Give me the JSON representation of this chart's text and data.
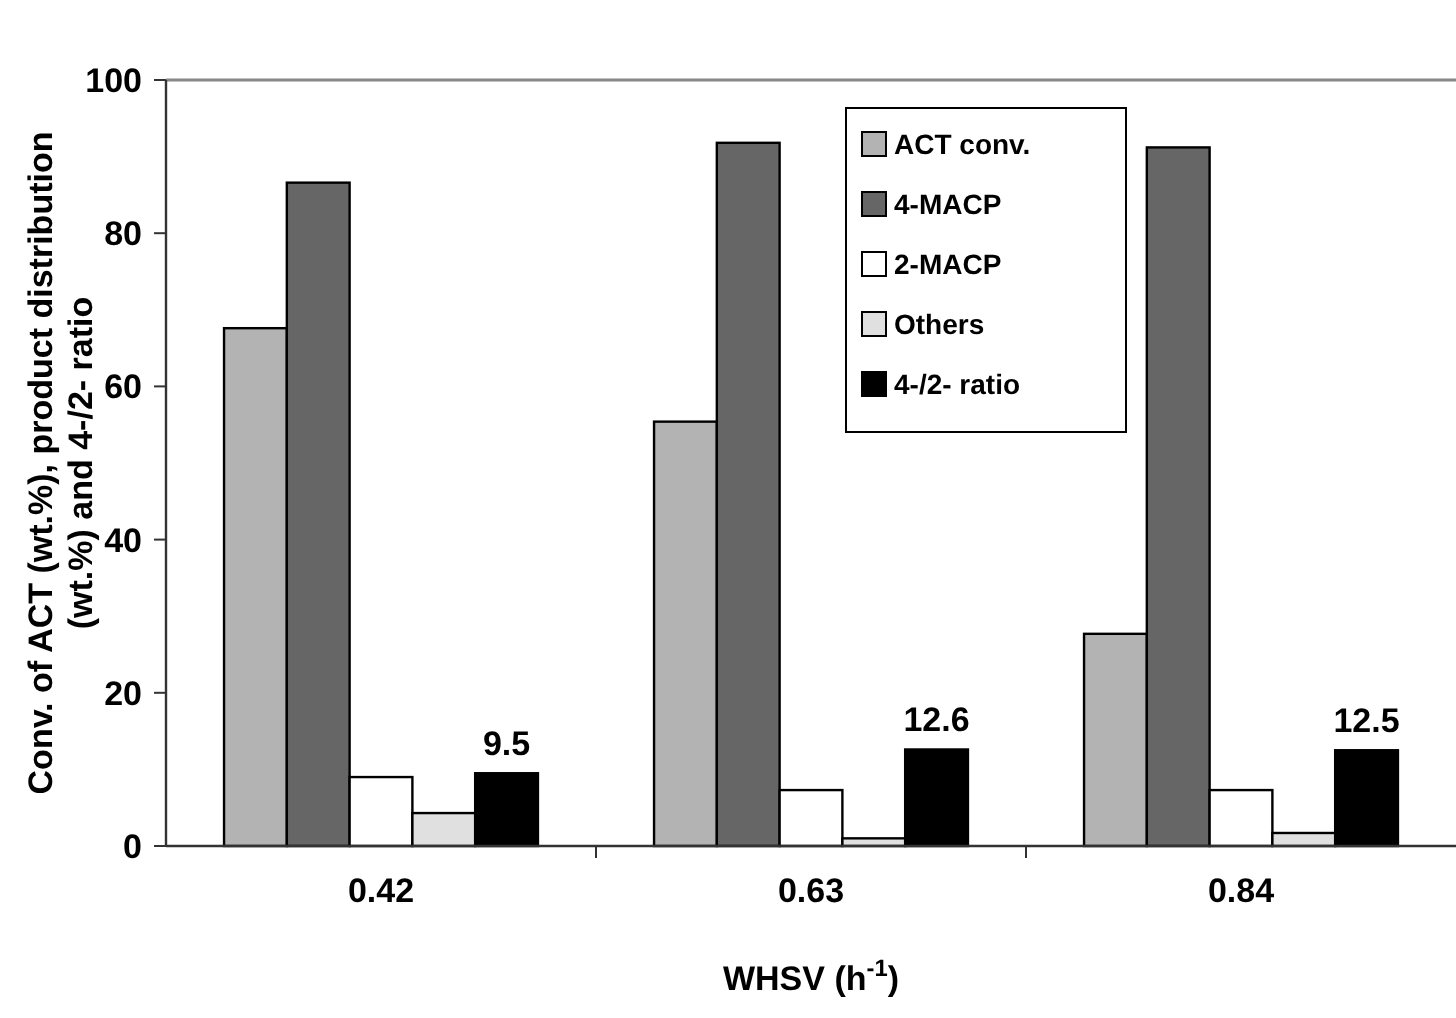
{
  "chart_data": {
    "type": "bar",
    "xlabel": "WHSV (h$^{-1}$)",
    "ylabel": "Conv. of ACT (wt.%), product distribution\n(wt.%) and 4-/2- ratio",
    "categories": [
      "0.42",
      "0.63",
      "0.84"
    ],
    "series": [
      {
        "name": "ACT conv.",
        "color": "#b3b3b3",
        "values": [
          67.6,
          55.4,
          27.7
        ]
      },
      {
        "name": "4-MACP",
        "color": "#666666",
        "values": [
          86.6,
          91.8,
          91.2
        ]
      },
      {
        "name": "2-MACP",
        "color": "#ffffff",
        "values": [
          9.0,
          7.3,
          7.3
        ]
      },
      {
        "name": "Others",
        "color": "#e0e0e0",
        "values": [
          4.3,
          1.0,
          1.7
        ]
      },
      {
        "name": "4-/2- ratio",
        "color": "#000000",
        "values": [
          9.5,
          12.6,
          12.5
        ],
        "value_labels": [
          "9.5",
          "12.6",
          "12.5"
        ]
      }
    ],
    "ylim": [
      0,
      100
    ],
    "yticks": [
      0,
      20,
      40,
      60,
      80,
      100
    ],
    "grid": false,
    "legend": "top right"
  }
}
